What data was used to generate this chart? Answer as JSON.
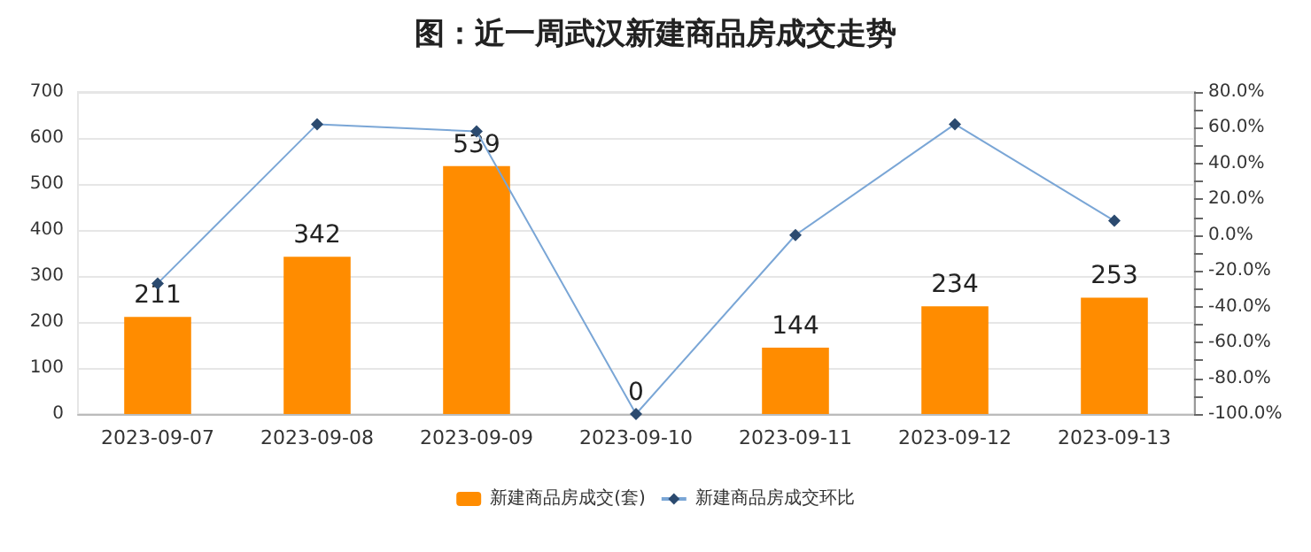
{
  "chart_data": {
    "type": "bar",
    "title": "图：近一周武汉新建商品房成交走势",
    "categories": [
      "2023-09-07",
      "2023-09-08",
      "2023-09-09",
      "2023-09-10",
      "2023-09-11",
      "2023-09-12",
      "2023-09-13"
    ],
    "series": [
      {
        "name": "新建商品房成交(套)",
        "color": "#ff8c00",
        "values": [
          211,
          342,
          539,
          0,
          144,
          234,
          253
        ],
        "data_labels": true
      },
      {
        "name": "新建商品房成交环比",
        "type": "line",
        "axis": "y2",
        "color": "#7aa6d6",
        "marker": "diamond",
        "values": [
          -27,
          62,
          58,
          -100,
          0,
          62,
          8
        ]
      }
    ],
    "ylim": [
      0,
      700
    ],
    "yticks": [
      0,
      100,
      200,
      300,
      400,
      500,
      600,
      700
    ],
    "y2lim": [
      -100,
      80
    ],
    "y2ticks": [
      {
        "value": -100,
        "label": "-100.0%"
      },
      {
        "value": -90,
        "label": null
      },
      {
        "value": -80,
        "label": "-80.0%"
      },
      {
        "value": -70,
        "label": null
      },
      {
        "value": -60,
        "label": "-60.0%"
      },
      {
        "value": -50,
        "label": null
      },
      {
        "value": -40,
        "label": "-40.0%"
      },
      {
        "value": -30,
        "label": null
      },
      {
        "value": -20,
        "label": "-20.0%"
      },
      {
        "value": -10,
        "label": null
      },
      {
        "value": 0,
        "label": "0.0%"
      },
      {
        "value": 10,
        "label": null
      },
      {
        "value": 20,
        "label": "20.0%"
      },
      {
        "value": 30,
        "label": null
      },
      {
        "value": 40,
        "label": "40.0%"
      },
      {
        "value": 50,
        "label": null
      },
      {
        "value": 60,
        "label": "60.0%"
      },
      {
        "value": 70,
        "label": null
      },
      {
        "value": 80,
        "label": "80.0%"
      }
    ],
    "grid": "y",
    "legend": "bottom"
  }
}
